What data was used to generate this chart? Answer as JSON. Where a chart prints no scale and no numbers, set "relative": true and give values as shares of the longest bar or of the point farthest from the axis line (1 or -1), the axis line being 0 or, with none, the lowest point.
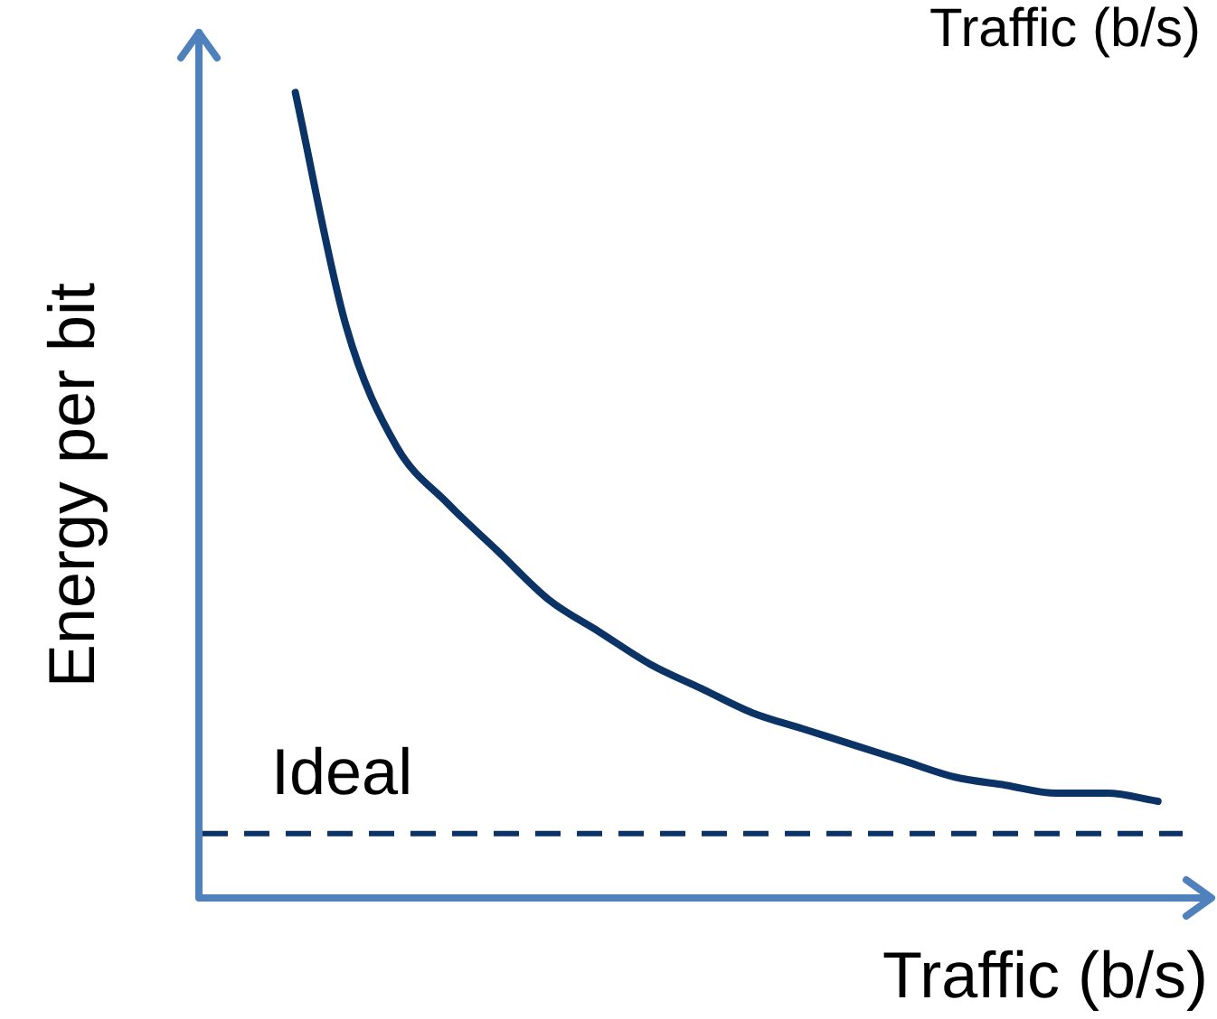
{
  "chart_data": {
    "type": "line",
    "relative": true,
    "xlabel": "Traffic (b/s)",
    "ylabel": "Energy per bit",
    "annotations": [
      "Traffic (b/s)"
    ],
    "categories": [
      null,
      null,
      null,
      null,
      null,
      null,
      null,
      null,
      null,
      null,
      null,
      null,
      null,
      null,
      null,
      null,
      null,
      null
    ],
    "series": [
      {
        "color": "#0b3366",
        "values": [
          1,
          0.71,
          0.56,
          0.49,
          0.43,
          0.37,
          0.33,
          0.29,
          0.26,
          0.23,
          0.21,
          0.19,
          0.17,
          0.15,
          0.14,
          0.13,
          0.13,
          0.12
        ]
      }
    ],
    "ref_lines": [
      {
        "axis": "y",
        "value": 0.08,
        "label": "Ideal",
        "color": "#0b3366",
        "line_style": "dashed"
      }
    ],
    "legend": false,
    "marker": "none",
    "line_style": "solid"
  }
}
